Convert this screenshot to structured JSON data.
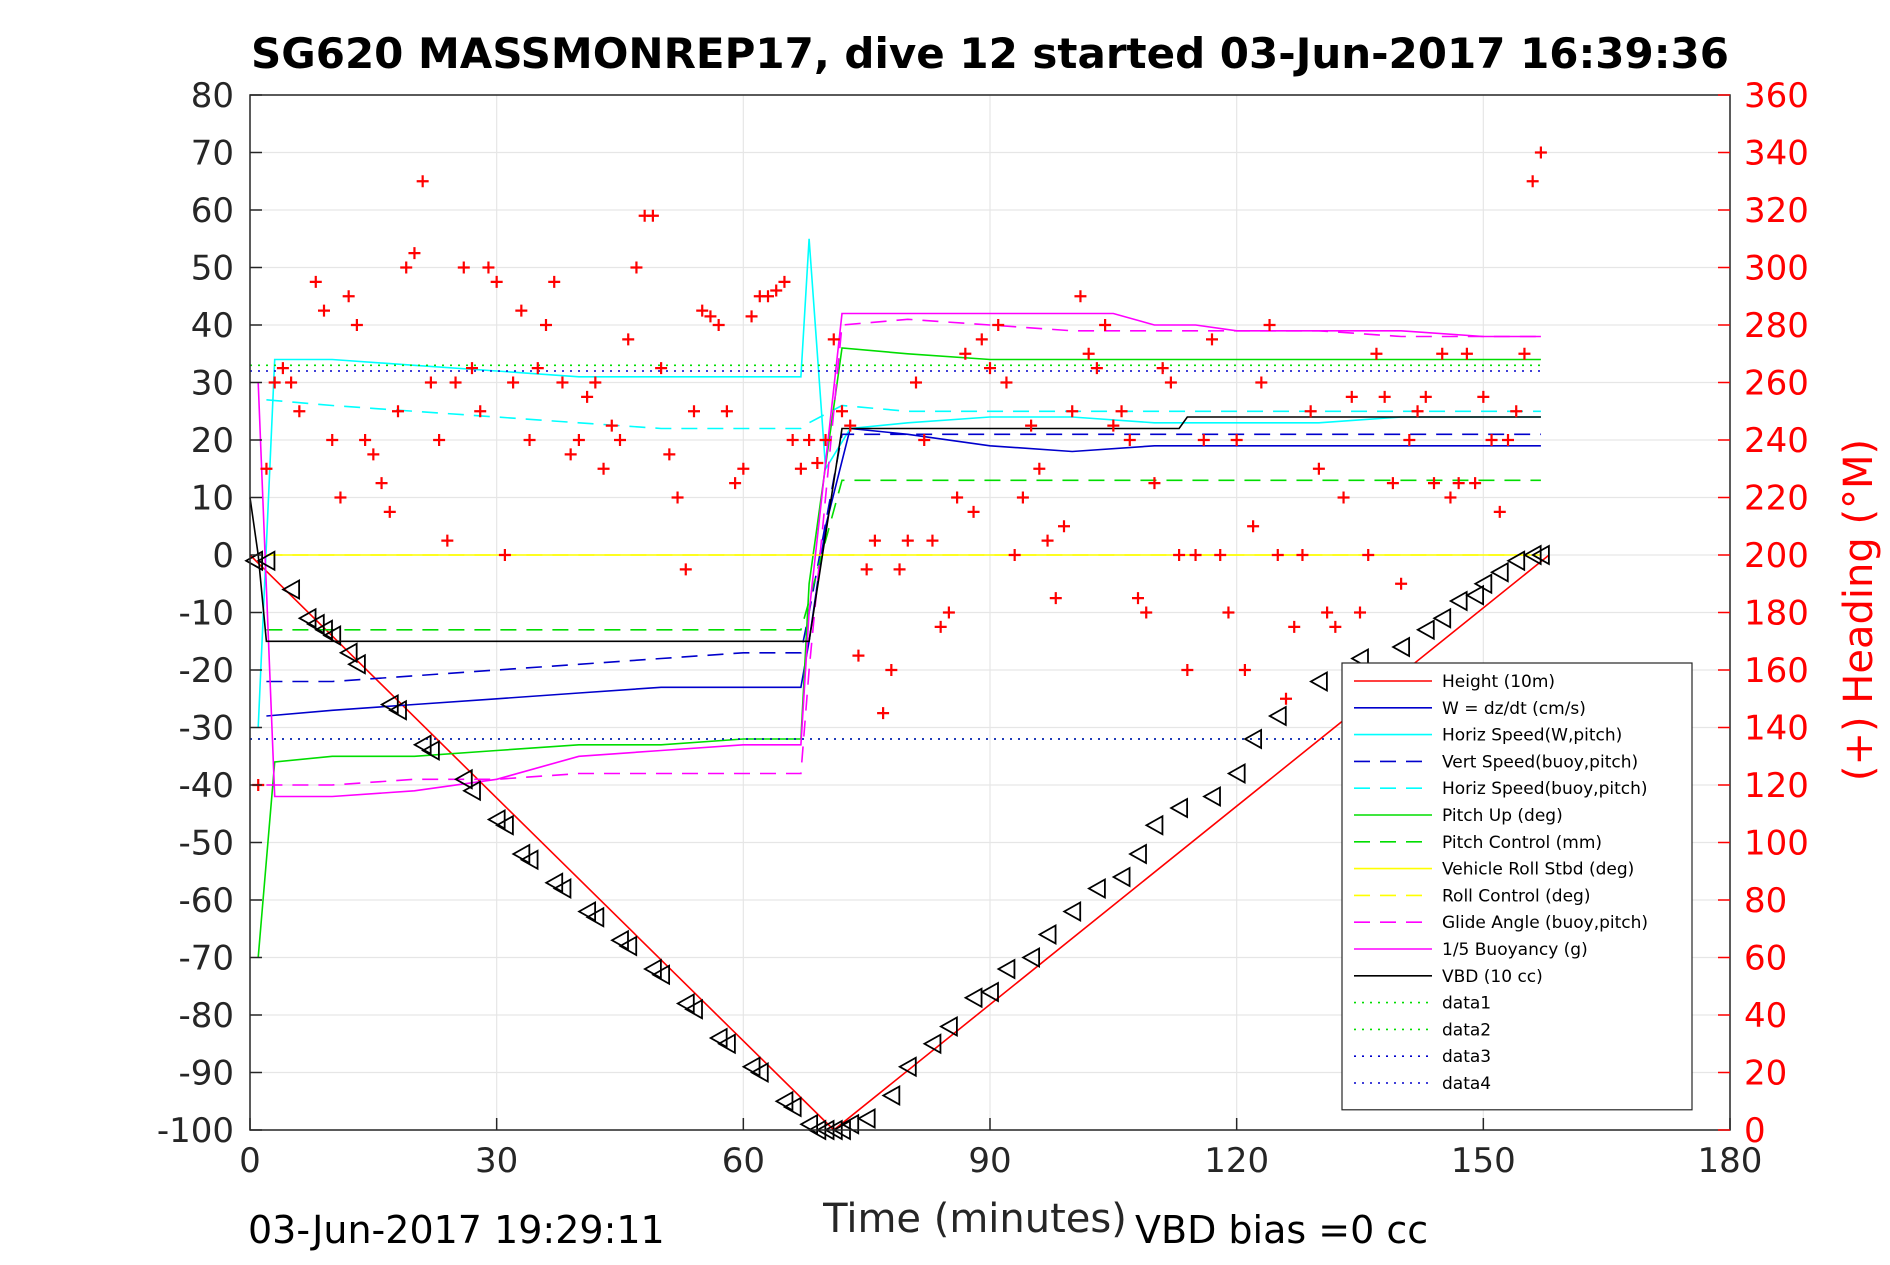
{
  "chart_data": {
    "type": "line",
    "title": "SG620 MASSMONREP17, dive 12 started 03-Jun-2017 16:39:36",
    "xlabel": "Time (minutes)",
    "ylabel_right": "(+) Heading (°M)",
    "xlim": [
      0,
      180
    ],
    "ylim_left": [
      -100,
      80
    ],
    "ylim_right": [
      0,
      360
    ],
    "x_ticks": [
      "0",
      "30",
      "60",
      "90",
      "120",
      "150",
      "180"
    ],
    "y_ticks_left": [
      "80",
      "70",
      "60",
      "50",
      "40",
      "30",
      "20",
      "10",
      "0",
      "-10",
      "-20",
      "-30",
      "-40",
      "-50",
      "-60",
      "-70",
      "-80",
      "-90",
      "-100"
    ],
    "y_ticks_right": [
      "360",
      "340",
      "320",
      "300",
      "280",
      "260",
      "240",
      "220",
      "200",
      "180",
      "160",
      "140",
      "120",
      "100",
      "80",
      "60",
      "40",
      "20",
      "0"
    ],
    "grid": true,
    "legend_position": "bottom-right",
    "footer_left": "03-Jun-2017 19:29:11",
    "footer_right": "VBD bias =0 cc",
    "series": [
      {
        "name": "Height (10m)",
        "color": "#ff0000",
        "style": "solid",
        "x": [
          0,
          71,
          158
        ],
        "y": [
          0,
          -100,
          0
        ]
      },
      {
        "name": "W = dz/dt (cm/s)",
        "color": "#0000cc",
        "style": "solid",
        "x": [
          2,
          10,
          20,
          30,
          40,
          50,
          60,
          67,
          68,
          70,
          73,
          80,
          90,
          100,
          110,
          120,
          130,
          140,
          150,
          157
        ],
        "y": [
          -28,
          -27,
          -26,
          -25,
          -24,
          -23,
          -23,
          -23,
          -15,
          5,
          22,
          21,
          19,
          18,
          19,
          19,
          19,
          19,
          19,
          19
        ]
      },
      {
        "name": "Horiz Speed(W,pitch)",
        "color": "#00ffff",
        "style": "solid",
        "x": [
          1,
          3,
          10,
          20,
          30,
          40,
          50,
          60,
          67,
          68,
          70,
          73,
          80,
          90,
          100,
          110,
          120,
          130,
          140,
          150,
          157
        ],
        "y": [
          -30,
          34,
          34,
          33,
          32,
          31,
          31,
          31,
          31,
          55,
          15,
          22,
          23,
          24,
          24,
          23,
          23,
          23,
          24,
          24,
          24
        ]
      },
      {
        "name": "Vert Speed(buoy,pitch)",
        "color": "#0000cc",
        "style": "dashed",
        "x": [
          2,
          10,
          20,
          30,
          40,
          50,
          60,
          67,
          68,
          72,
          80,
          90,
          100,
          110,
          120,
          130,
          140,
          150,
          157
        ],
        "y": [
          -22,
          -22,
          -21,
          -20,
          -19,
          -18,
          -17,
          -17,
          -10,
          21,
          21,
          21,
          21,
          21,
          21,
          21,
          21,
          21,
          21
        ]
      },
      {
        "name": "Horiz Speed(buoy,pitch)",
        "color": "#00ffff",
        "style": "dashed",
        "x": [
          2,
          10,
          20,
          30,
          40,
          50,
          60,
          67,
          68,
          72,
          80,
          90,
          100,
          110,
          120,
          130,
          140,
          150,
          157
        ],
        "y": [
          27,
          26,
          25,
          24,
          23,
          22,
          22,
          22,
          23,
          26,
          25,
          25,
          25,
          25,
          25,
          25,
          25,
          25,
          25
        ]
      },
      {
        "name": "Pitch Up (deg)",
        "color": "#00dd00",
        "style": "solid",
        "x": [
          1,
          3,
          10,
          20,
          30,
          40,
          50,
          60,
          67,
          68,
          72,
          80,
          90,
          100,
          110,
          120,
          130,
          140,
          150,
          157
        ],
        "y": [
          -70,
          -36,
          -35,
          -35,
          -34,
          -33,
          -33,
          -32,
          -32,
          -5,
          36,
          35,
          34,
          34,
          34,
          34,
          34,
          34,
          34,
          34
        ]
      },
      {
        "name": "Pitch Control (mm)",
        "color": "#00dd00",
        "style": "dashed",
        "x": [
          2,
          67,
          68,
          72,
          157
        ],
        "y": [
          -13,
          -13,
          -8,
          13,
          13
        ]
      },
      {
        "name": "Vehicle Roll Stbd (deg)",
        "color": "#ffff00",
        "style": "solid",
        "x": [
          2,
          10,
          20,
          30,
          40,
          50,
          60,
          67,
          68,
          75,
          90,
          105,
          120,
          135,
          150,
          157
        ],
        "y": [
          0,
          0,
          0,
          0,
          0,
          0,
          0,
          0,
          0,
          0,
          0,
          0,
          0,
          0,
          0,
          0
        ]
      },
      {
        "name": "Roll Control (deg)",
        "color": "#ffff00",
        "style": "dashed",
        "x": [
          2,
          157
        ],
        "y": [
          0,
          0
        ]
      },
      {
        "name": "Glide Angle (buoy,pitch)",
        "color": "#ff00ff",
        "style": "dashed",
        "x": [
          2,
          10,
          20,
          30,
          40,
          50,
          60,
          67,
          68,
          72,
          80,
          90,
          100,
          110,
          120,
          130,
          140,
          150,
          157
        ],
        "y": [
          -40,
          -40,
          -39,
          -39,
          -38,
          -38,
          -38,
          -38,
          -20,
          40,
          41,
          40,
          39,
          39,
          39,
          39,
          38,
          38,
          38
        ]
      },
      {
        "name": "1/5 Buoyancy (g)",
        "color": "#ff00ff",
        "style": "solid",
        "x": [
          1,
          3,
          10,
          20,
          30,
          40,
          50,
          60,
          67,
          68,
          72,
          80,
          90,
          100,
          105,
          110,
          115,
          120,
          130,
          140,
          150,
          157
        ],
        "y": [
          30,
          -42,
          -42,
          -41,
          -39,
          -35,
          -34,
          -33,
          -33,
          -10,
          42,
          42,
          42,
          42,
          42,
          40,
          40,
          39,
          39,
          39,
          38,
          38
        ]
      },
      {
        "name": "VBD (10 cc)",
        "color": "#000000",
        "style": "solid",
        "x": [
          0,
          1,
          2,
          67,
          68,
          72,
          113,
          114,
          157
        ],
        "y": [
          10,
          0,
          -15,
          -15,
          -15,
          22,
          22,
          24,
          24
        ]
      },
      {
        "name": "data1",
        "color": "#00dd00",
        "style": "dotted",
        "x": [
          0,
          157
        ],
        "y": [
          33,
          33
        ]
      },
      {
        "name": "data2",
        "color": "#00dd00",
        "style": "dotted",
        "x": [
          0,
          157
        ],
        "y": [
          -32,
          -32
        ]
      },
      {
        "name": "data3",
        "color": "#0000cc",
        "style": "dotted",
        "x": [
          0,
          157
        ],
        "y": [
          32,
          32
        ]
      },
      {
        "name": "data4",
        "color": "#0000cc",
        "style": "dotted",
        "x": [
          0,
          157
        ],
        "y": [
          -32,
          -32
        ]
      }
    ],
    "heading_points": {
      "marker": "+",
      "color": "#ff0000",
      "axis": "right",
      "x": [
        1,
        2,
        3,
        4,
        5,
        6,
        8,
        9,
        10,
        11,
        12,
        13,
        14,
        15,
        16,
        17,
        18,
        19,
        20,
        21,
        22,
        23,
        24,
        25,
        26,
        27,
        28,
        29,
        30,
        31,
        32,
        33,
        34,
        35,
        36,
        37,
        38,
        39,
        40,
        41,
        42,
        43,
        44,
        45,
        46,
        47,
        48,
        49,
        50,
        51,
        52,
        53,
        54,
        55,
        56,
        57,
        58,
        59,
        60,
        61,
        62,
        63,
        64,
        65,
        66,
        67,
        68,
        69,
        70,
        71,
        72,
        73,
        74,
        75,
        76,
        77,
        78,
        79,
        80,
        81,
        82,
        83,
        84,
        85,
        86,
        87,
        88,
        89,
        90,
        91,
        92,
        93,
        94,
        95,
        96,
        97,
        98,
        99,
        100,
        101,
        102,
        103,
        104,
        105,
        106,
        107,
        108,
        109,
        110,
        111,
        112,
        113,
        114,
        115,
        116,
        117,
        118,
        119,
        120,
        121,
        122,
        123,
        124,
        125,
        126,
        127,
        128,
        129,
        130,
        131,
        132,
        133,
        134,
        135,
        136,
        137,
        138,
        139,
        140,
        141,
        142,
        143,
        144,
        145,
        146,
        147,
        148,
        149,
        150,
        151,
        152,
        153,
        154,
        155,
        156,
        157
      ],
      "y": [
        120,
        230,
        260,
        265,
        260,
        250,
        295,
        285,
        240,
        220,
        290,
        280,
        240,
        235,
        225,
        215,
        250,
        300,
        305,
        330,
        260,
        240,
        205,
        260,
        300,
        265,
        250,
        300,
        295,
        200,
        260,
        285,
        240,
        265,
        280,
        295,
        260,
        235,
        240,
        255,
        260,
        230,
        245,
        240,
        275,
        300,
        318,
        318,
        265,
        235,
        220,
        195,
        250,
        285,
        283,
        280,
        250,
        225,
        230,
        283,
        290,
        290,
        292,
        295,
        240,
        230,
        240,
        232,
        240,
        275,
        250,
        245,
        165,
        195,
        205,
        145,
        160,
        195,
        205,
        260,
        240,
        205,
        175,
        180,
        220,
        270,
        215,
        275,
        265,
        280,
        260,
        200,
        220,
        245,
        230,
        205,
        185,
        210,
        250,
        290,
        270,
        265,
        280,
        245,
        250,
        240,
        185,
        180,
        225,
        265,
        260,
        200,
        160,
        200,
        240,
        275,
        200,
        180,
        240,
        160,
        210,
        260,
        280,
        200,
        150,
        175,
        200,
        250,
        230,
        180,
        175,
        220,
        255,
        180,
        200,
        270,
        255,
        225,
        190,
        240,
        250,
        255,
        225,
        270,
        220,
        225,
        270,
        225,
        255,
        240,
        215,
        240,
        250,
        270,
        330,
        340
      ]
    },
    "depth_markers": {
      "marker": "triangle-left",
      "color": "#000000",
      "x": [
        0.5,
        2,
        5,
        7,
        8,
        9,
        10,
        12,
        13,
        17,
        18,
        21,
        22,
        26,
        27,
        30,
        31,
        33,
        34,
        37,
        38,
        41,
        42,
        45,
        46,
        49,
        50,
        53,
        54,
        57,
        58,
        61,
        62,
        65,
        66,
        68,
        69,
        70,
        71,
        72,
        73,
        75,
        78,
        80,
        83,
        85,
        88,
        90,
        92,
        95,
        97,
        100,
        103,
        106,
        108,
        110,
        113,
        117,
        120,
        122,
        125,
        130,
        135,
        140,
        143,
        145,
        147,
        149,
        150,
        152,
        154,
        156,
        157
      ],
      "y": [
        -1,
        -1,
        -6,
        -11,
        -12,
        -13,
        -14,
        -17,
        -19,
        -26,
        -27,
        -33,
        -34,
        -39,
        -41,
        -46,
        -47,
        -52,
        -53,
        -57,
        -58,
        -62,
        -63,
        -67,
        -68,
        -72,
        -73,
        -78,
        -79,
        -84,
        -85,
        -89,
        -90,
        -95,
        -96,
        -99,
        -100,
        -100,
        -100,
        -100,
        -99,
        -98,
        -94,
        -89,
        -85,
        -82,
        -77,
        -76,
        -72,
        -70,
        -66,
        -62,
        -58,
        -56,
        -52,
        -47,
        -44,
        -42,
        -38,
        -32,
        -28,
        -22,
        -18,
        -16,
        -13,
        -11,
        -8,
        -7,
        -5,
        -3,
        -1,
        0,
        0
      ]
    }
  }
}
